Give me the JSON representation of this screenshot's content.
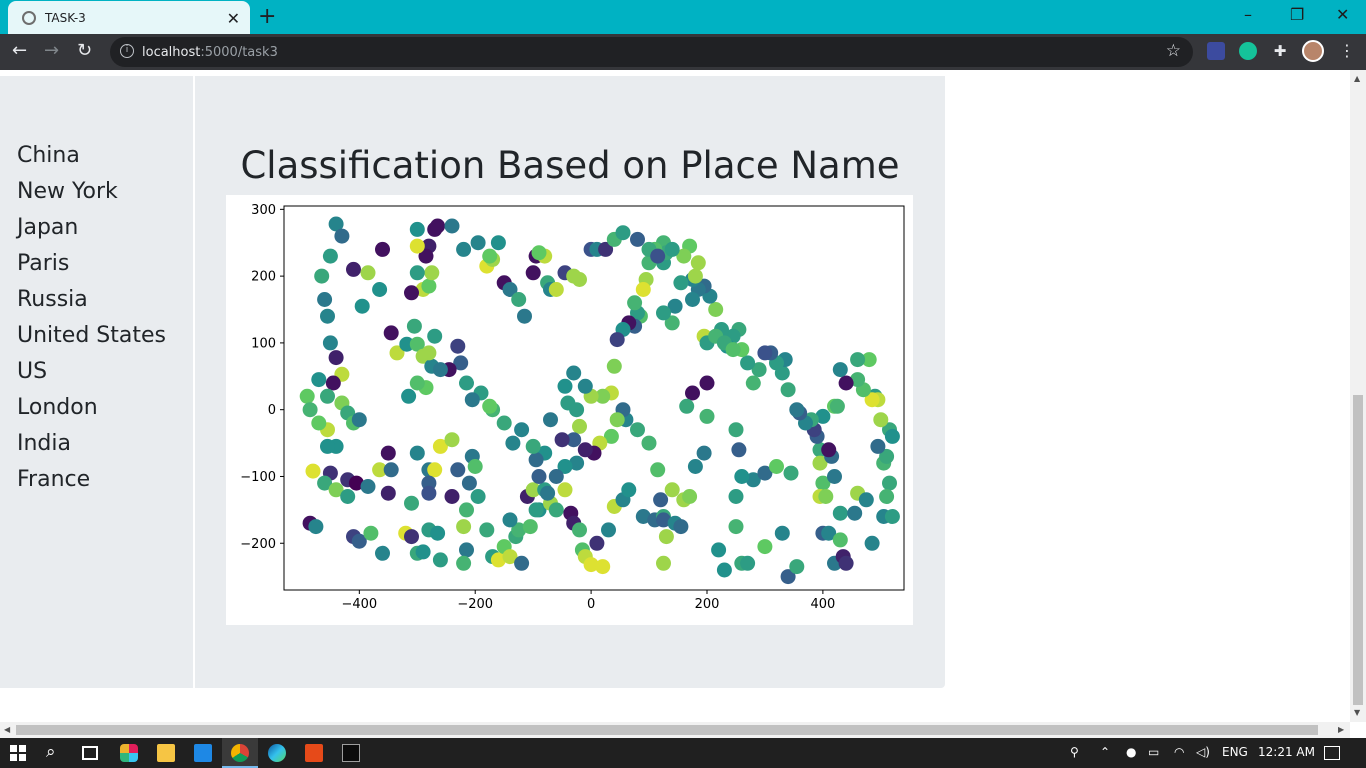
{
  "browser": {
    "tab_title": "TASK-3",
    "url_host": "localhost",
    "url_path": ":5000/task3"
  },
  "sidebar": {
    "items": [
      "China",
      "New York",
      "Japan",
      "Paris",
      "Russia",
      "United States",
      "US",
      "London",
      "India",
      "France"
    ]
  },
  "main": {
    "title": "Classification Based on Place Name"
  },
  "chart_data": {
    "type": "scatter",
    "title": "",
    "xlabel": "",
    "ylabel": "",
    "xlim": [
      -530,
      540
    ],
    "ylim": [
      -270,
      305
    ],
    "xticks": [
      -400,
      -200,
      0,
      200,
      400
    ],
    "yticks": [
      -200,
      -100,
      0,
      100,
      200,
      300
    ],
    "xtick_labels": [
      "−400",
      "−200",
      "0",
      "200",
      "400"
    ],
    "ytick_labels": [
      "−200",
      "−100",
      "0",
      "100",
      "200",
      "300"
    ],
    "grid": false,
    "colormap": "viridis",
    "points": [
      [
        -440,
        278,
        0.45
      ],
      [
        -430,
        260,
        0.35
      ],
      [
        -450,
        230,
        0.55
      ],
      [
        -465,
        200,
        0.6
      ],
      [
        -460,
        165,
        0.4
      ],
      [
        -455,
        140,
        0.45
      ],
      [
        -395,
        155,
        0.5
      ],
      [
        -360,
        240,
        0.05
      ],
      [
        -410,
        210,
        0.1
      ],
      [
        -385,
        205,
        0.85
      ],
      [
        -365,
        180,
        0.5
      ],
      [
        -345,
        115,
        0.05
      ],
      [
        -335,
        85,
        0.9
      ],
      [
        -318,
        98,
        0.5
      ],
      [
        -305,
        125,
        0.6
      ],
      [
        -300,
        98,
        0.7
      ],
      [
        -290,
        80,
        0.85
      ],
      [
        -275,
        65,
        0.45
      ],
      [
        -285,
        33,
        0.75
      ],
      [
        -300,
        40,
        0.7
      ],
      [
        -315,
        20,
        0.5
      ],
      [
        -440,
        78,
        0.1
      ],
      [
        -450,
        100,
        0.45
      ],
      [
        -430,
        53,
        0.9
      ],
      [
        -445,
        40,
        0.05
      ],
      [
        -470,
        45,
        0.5
      ],
      [
        -490,
        20,
        0.75
      ],
      [
        -485,
        0,
        0.65
      ],
      [
        -455,
        20,
        0.6
      ],
      [
        -430,
        10,
        0.8
      ],
      [
        -420,
        -5,
        0.6
      ],
      [
        -410,
        -20,
        0.7
      ],
      [
        -400,
        -15,
        0.4
      ],
      [
        -455,
        -30,
        0.9
      ],
      [
        -470,
        -20,
        0.75
      ],
      [
        -440,
        -55,
        0.5
      ],
      [
        -455,
        -55,
        0.5
      ],
      [
        -450,
        -95,
        0.15
      ],
      [
        -480,
        -92,
        0.95
      ],
      [
        -460,
        -110,
        0.6
      ],
      [
        -440,
        -120,
        0.8
      ],
      [
        -420,
        -130,
        0.55
      ],
      [
        -420,
        -105,
        0.15
      ],
      [
        -405,
        -110,
        0.0
      ],
      [
        -385,
        -115,
        0.4
      ],
      [
        -350,
        -125,
        0.1
      ],
      [
        -310,
        -140,
        0.6
      ],
      [
        -320,
        -185,
        0.95
      ],
      [
        -280,
        -180,
        0.55
      ],
      [
        -265,
        -185,
        0.5
      ],
      [
        -260,
        -225,
        0.55
      ],
      [
        -300,
        -215,
        0.6
      ],
      [
        -290,
        -213,
        0.5
      ],
      [
        -310,
        -190,
        0.15
      ],
      [
        -410,
        -190,
        0.2
      ],
      [
        -400,
        -197,
        0.3
      ],
      [
        -380,
        -185,
        0.7
      ],
      [
        -360,
        -215,
        0.45
      ],
      [
        -485,
        -170,
        0.05
      ],
      [
        -475,
        -175,
        0.45
      ],
      [
        -365,
        -90,
        0.9
      ],
      [
        -345,
        -90,
        0.35
      ],
      [
        -350,
        -65,
        0.05
      ],
      [
        -300,
        -65,
        0.45
      ],
      [
        -280,
        -90,
        0.4
      ],
      [
        -270,
        -90,
        0.95
      ],
      [
        -280,
        -110,
        0.3
      ],
      [
        -280,
        -125,
        0.25
      ],
      [
        -260,
        -55,
        0.95
      ],
      [
        -240,
        -45,
        0.85
      ],
      [
        -230,
        -90,
        0.3
      ],
      [
        -240,
        -130,
        0.1
      ],
      [
        -215,
        -150,
        0.65
      ],
      [
        -210,
        -110,
        0.35
      ],
      [
        -205,
        -70,
        0.4
      ],
      [
        -200,
        -85,
        0.7
      ],
      [
        -195,
        -130,
        0.55
      ],
      [
        -180,
        -180,
        0.6
      ],
      [
        -220,
        -175,
        0.85
      ],
      [
        -215,
        -210,
        0.4
      ],
      [
        -220,
        -230,
        0.65
      ],
      [
        -170,
        -220,
        0.55
      ],
      [
        -160,
        -225,
        0.95
      ],
      [
        -150,
        -205,
        0.75
      ],
      [
        -140,
        -220,
        0.9
      ],
      [
        -130,
        -190,
        0.6
      ],
      [
        -125,
        -180,
        0.65
      ],
      [
        -120,
        -230,
        0.35
      ],
      [
        -110,
        -130,
        0.1
      ],
      [
        -100,
        -120,
        0.85
      ],
      [
        -90,
        -150,
        0.5
      ],
      [
        -80,
        -120,
        0.55
      ],
      [
        -70,
        -140,
        0.85
      ],
      [
        -60,
        -150,
        0.6
      ],
      [
        -45,
        -120,
        0.9
      ],
      [
        -35,
        -155,
        0.05
      ],
      [
        -30,
        -170,
        0.1
      ],
      [
        -20,
        -180,
        0.65
      ],
      [
        -15,
        -210,
        0.7
      ],
      [
        -10,
        -220,
        0.9
      ],
      [
        0,
        -232,
        0.95
      ],
      [
        20,
        -235,
        0.95
      ],
      [
        10,
        -200,
        0.15
      ],
      [
        30,
        -180,
        0.45
      ],
      [
        40,
        -145,
        0.9
      ],
      [
        55,
        -135,
        0.45
      ],
      [
        65,
        -120,
        0.5
      ],
      [
        90,
        -160,
        0.4
      ],
      [
        110,
        -165,
        0.35
      ],
      [
        125,
        -160,
        0.6
      ],
      [
        125,
        -165,
        0.3
      ],
      [
        130,
        -190,
        0.85
      ],
      [
        145,
        -170,
        0.45
      ],
      [
        155,
        -175,
        0.35
      ],
      [
        160,
        -135,
        0.85
      ],
      [
        125,
        -230,
        0.85
      ],
      [
        120,
        -135,
        0.3
      ],
      [
        180,
        -85,
        0.45
      ],
      [
        195,
        -65,
        0.4
      ],
      [
        220,
        -210,
        0.5
      ],
      [
        230,
        -240,
        0.5
      ],
      [
        260,
        -230,
        0.6
      ],
      [
        250,
        -175,
        0.65
      ],
      [
        270,
        -230,
        0.55
      ],
      [
        300,
        -205,
        0.75
      ],
      [
        330,
        -185,
        0.45
      ],
      [
        340,
        -250,
        0.3
      ],
      [
        355,
        -235,
        0.6
      ],
      [
        400,
        -185,
        0.3
      ],
      [
        410,
        -185,
        0.45
      ],
      [
        420,
        -230,
        0.4
      ],
      [
        435,
        -220,
        0.1
      ],
      [
        440,
        -230,
        0.15
      ],
      [
        430,
        -195,
        0.7
      ],
      [
        430,
        -155,
        0.55
      ],
      [
        455,
        -155,
        0.4
      ],
      [
        460,
        -125,
        0.85
      ],
      [
        475,
        -135,
        0.45
      ],
      [
        485,
        -200,
        0.45
      ],
      [
        505,
        -160,
        0.45
      ],
      [
        520,
        -160,
        0.55
      ],
      [
        515,
        -110,
        0.6
      ],
      [
        510,
        -130,
        0.65
      ],
      [
        505,
        -80,
        0.65
      ],
      [
        510,
        -70,
        0.6
      ],
      [
        495,
        -55,
        0.35
      ],
      [
        515,
        -30,
        0.6
      ],
      [
        520,
        -40,
        0.5
      ],
      [
        500,
        -15,
        0.85
      ],
      [
        490,
        20,
        0.55
      ],
      [
        495,
        15,
        0.9
      ],
      [
        485,
        15,
        0.95
      ],
      [
        470,
        30,
        0.7
      ],
      [
        460,
        45,
        0.65
      ],
      [
        480,
        75,
        0.75
      ],
      [
        460,
        75,
        0.6
      ],
      [
        440,
        40,
        0.05
      ],
      [
        430,
        60,
        0.45
      ],
      [
        420,
        5,
        0.75
      ],
      [
        425,
        5,
        0.65
      ],
      [
        400,
        -10,
        0.5
      ],
      [
        395,
        -60,
        0.6
      ],
      [
        395,
        -80,
        0.85
      ],
      [
        400,
        -110,
        0.7
      ],
      [
        395,
        -130,
        0.9
      ],
      [
        405,
        -130,
        0.8
      ],
      [
        420,
        -100,
        0.4
      ],
      [
        415,
        -70,
        0.35
      ],
      [
        410,
        -60,
        0.05
      ],
      [
        390,
        -40,
        0.3
      ],
      [
        385,
        -30,
        0.2
      ],
      [
        380,
        -15,
        0.6
      ],
      [
        370,
        -20,
        0.45
      ],
      [
        360,
        -5,
        0.3
      ],
      [
        355,
        0,
        0.4
      ],
      [
        340,
        30,
        0.6
      ],
      [
        330,
        55,
        0.55
      ],
      [
        335,
        75,
        0.45
      ],
      [
        320,
        70,
        0.55
      ],
      [
        310,
        85,
        0.3
      ],
      [
        300,
        85,
        0.25
      ],
      [
        290,
        60,
        0.6
      ],
      [
        280,
        40,
        0.65
      ],
      [
        270,
        70,
        0.55
      ],
      [
        260,
        90,
        0.75
      ],
      [
        255,
        120,
        0.6
      ],
      [
        245,
        110,
        0.55
      ],
      [
        235,
        95,
        0.5
      ],
      [
        225,
        120,
        0.55
      ],
      [
        215,
        150,
        0.8
      ],
      [
        205,
        170,
        0.45
      ],
      [
        195,
        185,
        0.35
      ],
      [
        185,
        180,
        0.4
      ],
      [
        175,
        195,
        0.45
      ],
      [
        175,
        165,
        0.45
      ],
      [
        185,
        220,
        0.85
      ],
      [
        180,
        200,
        0.85
      ],
      [
        170,
        245,
        0.75
      ],
      [
        160,
        230,
        0.8
      ],
      [
        155,
        190,
        0.55
      ],
      [
        145,
        155,
        0.45
      ],
      [
        140,
        130,
        0.65
      ],
      [
        125,
        145,
        0.55
      ],
      [
        125,
        220,
        0.55
      ],
      [
        125,
        250,
        0.65
      ],
      [
        130,
        235,
        0.6
      ],
      [
        110,
        240,
        0.7
      ],
      [
        100,
        220,
        0.65
      ],
      [
        95,
        195,
        0.85
      ],
      [
        90,
        180,
        0.95
      ],
      [
        85,
        140,
        0.7
      ],
      [
        80,
        145,
        0.55
      ],
      [
        75,
        160,
        0.65
      ],
      [
        75,
        125,
        0.3
      ],
      [
        65,
        130,
        0.05
      ],
      [
        55,
        120,
        0.5
      ],
      [
        45,
        105,
        0.2
      ],
      [
        40,
        65,
        0.8
      ],
      [
        35,
        25,
        0.9
      ],
      [
        20,
        20,
        0.8
      ],
      [
        0,
        20,
        0.85
      ],
      [
        -10,
        35,
        0.45
      ],
      [
        -30,
        55,
        0.45
      ],
      [
        -45,
        35,
        0.5
      ],
      [
        -40,
        10,
        0.55
      ],
      [
        -25,
        0,
        0.55
      ],
      [
        -20,
        -25,
        0.85
      ],
      [
        -30,
        -45,
        0.3
      ],
      [
        -50,
        -45,
        0.15
      ],
      [
        -70,
        -15,
        0.4
      ],
      [
        -80,
        -65,
        0.5
      ],
      [
        -90,
        -100,
        0.3
      ],
      [
        -95,
        -75,
        0.35
      ],
      [
        -100,
        -55,
        0.6
      ],
      [
        -120,
        -30,
        0.45
      ],
      [
        -135,
        -50,
        0.45
      ],
      [
        -150,
        -20,
        0.6
      ],
      [
        -170,
        0,
        0.65
      ],
      [
        -175,
        5,
        0.75
      ],
      [
        -190,
        25,
        0.55
      ],
      [
        -205,
        15,
        0.4
      ],
      [
        -215,
        40,
        0.55
      ],
      [
        -225,
        70,
        0.3
      ],
      [
        -230,
        95,
        0.2
      ],
      [
        -245,
        60,
        0.05
      ],
      [
        -260,
        60,
        0.4
      ],
      [
        -280,
        85,
        0.85
      ],
      [
        -270,
        110,
        0.55
      ],
      [
        -290,
        180,
        0.9
      ],
      [
        -280,
        185,
        0.75
      ],
      [
        -275,
        205,
        0.85
      ],
      [
        -280,
        245,
        0.1
      ],
      [
        -285,
        230,
        0.05
      ],
      [
        -270,
        270,
        0.05
      ],
      [
        -300,
        245,
        0.95
      ],
      [
        -310,
        175,
        0.05
      ],
      [
        -300,
        205,
        0.55
      ],
      [
        -300,
        270,
        0.5
      ],
      [
        -265,
        275,
        0.05
      ],
      [
        -240,
        275,
        0.4
      ],
      [
        -220,
        240,
        0.45
      ],
      [
        -195,
        250,
        0.45
      ],
      [
        -180,
        215,
        0.95
      ],
      [
        -170,
        225,
        0.85
      ],
      [
        -160,
        250,
        0.5
      ],
      [
        -175,
        230,
        0.75
      ],
      [
        -150,
        190,
        0.05
      ],
      [
        -140,
        180,
        0.4
      ],
      [
        -125,
        165,
        0.6
      ],
      [
        -115,
        140,
        0.4
      ],
      [
        -100,
        205,
        0.05
      ],
      [
        -95,
        230,
        0.05
      ],
      [
        -80,
        230,
        0.9
      ],
      [
        -90,
        235,
        0.75
      ],
      [
        -75,
        190,
        0.6
      ],
      [
        -70,
        180,
        0.45
      ],
      [
        -60,
        180,
        0.9
      ],
      [
        -45,
        205,
        0.2
      ],
      [
        -30,
        200,
        0.85
      ],
      [
        -20,
        195,
        0.85
      ],
      [
        0,
        240,
        0.25
      ],
      [
        10,
        240,
        0.45
      ],
      [
        25,
        240,
        0.15
      ],
      [
        40,
        255,
        0.65
      ],
      [
        55,
        265,
        0.55
      ],
      [
        80,
        255,
        0.3
      ],
      [
        100,
        240,
        0.6
      ],
      [
        115,
        230,
        0.25
      ],
      [
        140,
        240,
        0.55
      ],
      [
        195,
        110,
        0.9
      ],
      [
        200,
        100,
        0.55
      ],
      [
        215,
        110,
        0.65
      ],
      [
        230,
        100,
        0.6
      ],
      [
        245,
        90,
        0.7
      ],
      [
        200,
        40,
        0.05
      ],
      [
        175,
        25,
        0.05
      ],
      [
        165,
        5,
        0.6
      ],
      [
        200,
        -10,
        0.65
      ],
      [
        250,
        -30,
        0.6
      ],
      [
        255,
        -60,
        0.3
      ],
      [
        280,
        -105,
        0.45
      ],
      [
        300,
        -95,
        0.35
      ],
      [
        320,
        -85,
        0.75
      ],
      [
        345,
        -95,
        0.6
      ],
      [
        260,
        -100,
        0.5
      ],
      [
        250,
        -130,
        0.55
      ],
      [
        170,
        -130,
        0.8
      ],
      [
        140,
        -120,
        0.85
      ],
      [
        115,
        -90,
        0.7
      ],
      [
        100,
        -50,
        0.65
      ],
      [
        80,
        -30,
        0.6
      ],
      [
        60,
        -15,
        0.45
      ],
      [
        55,
        0,
        0.35
      ],
      [
        45,
        -15,
        0.8
      ],
      [
        35,
        -40,
        0.75
      ],
      [
        15,
        -50,
        0.9
      ],
      [
        5,
        -65,
        0.05
      ],
      [
        -10,
        -60,
        0.1
      ],
      [
        -25,
        -80,
        0.45
      ],
      [
        -45,
        -85,
        0.5
      ],
      [
        -60,
        -100,
        0.35
      ],
      [
        -75,
        -125,
        0.4
      ],
      [
        -95,
        -150,
        0.55
      ],
      [
        -105,
        -175,
        0.7
      ],
      [
        -140,
        -165,
        0.45
      ]
    ]
  }
}
